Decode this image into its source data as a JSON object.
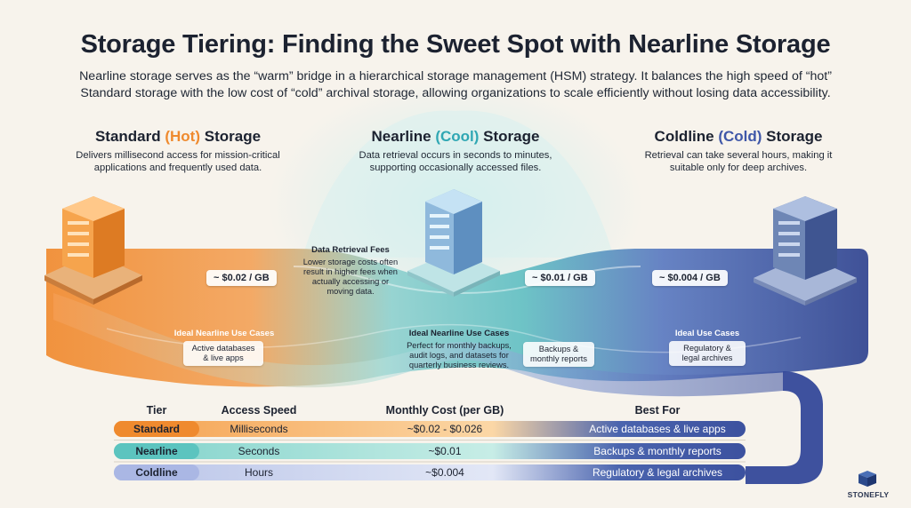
{
  "title": "Storage Tiering: Finding the Sweet Spot with Nearline Storage",
  "subtitle": "Nearline storage serves as the “warm” bridge in a hierarchical storage management (HSM) strategy. It balances the high speed of “hot” Standard storage with the low cost of “cold” archival storage, allowing organizations to scale efficiently without losing data accessibility.",
  "tiers": {
    "standard": {
      "name_pre": "Standard ",
      "name_accent": "(Hot)",
      "name_post": " Storage",
      "desc_line1": "Delivers millisecond access for mission-critical",
      "desc_line2": "applications and frequently used data.",
      "price": "~ $0.02 / GB",
      "use_title": "Ideal Nearline Use Cases",
      "use_line1": "Active databases",
      "use_line2": "& live apps"
    },
    "nearline": {
      "name_pre": "Nearline ",
      "name_accent": "(Cool)",
      "name_post": " Storage",
      "desc_line1": "Data retrieval occurs in seconds to minutes,",
      "desc_line2": "supporting occasionally accessed files.",
      "price": "~ $0.01 / GB",
      "use_title": "Ideal Nearline Use Cases",
      "use_line1": "Perfect for monthly backups,",
      "use_line2": "audit logs, and datasets for",
      "use_line3": "quarterly business reviews.",
      "chip_line1": "Backups &",
      "chip_line2": "monthly reports"
    },
    "coldline": {
      "name_pre": "Coldline ",
      "name_accent": "(Cold)",
      "name_post": " Storage",
      "desc_line1": "Retrieval can take several hours, making it",
      "desc_line2": "suitable only for deep archives.",
      "price": "~ $0.004 / GB",
      "use_title": "Ideal Use Cases",
      "use_line1": "Regulatory &",
      "use_line2": "legal archives"
    }
  },
  "fees_note": {
    "title": "Data Retrieval Fees",
    "line1": "Lower storage costs often",
    "line2": "result in higher fees when",
    "line3": "actually accessing or",
    "line4": "moving data."
  },
  "table": {
    "headers": [
      "Tier",
      "Access Speed",
      "Monthly Cost (per GB)",
      "Best For"
    ],
    "rows": [
      [
        "Standard",
        "Milliseconds",
        "~$0.02 - $0.026",
        "Active databases & live apps"
      ],
      [
        "Nearline",
        "Seconds",
        "~$0.01",
        "Backups & monthly reports"
      ],
      [
        "Coldline",
        "Hours",
        "~$0.004",
        "Regulatory & legal archives"
      ]
    ]
  },
  "brand": "STONEFLY",
  "colors": {
    "hot": "#ef8a2e",
    "cool": "#2fa7b3",
    "cold": "#3f57a8",
    "background": "#f7f3ec"
  }
}
